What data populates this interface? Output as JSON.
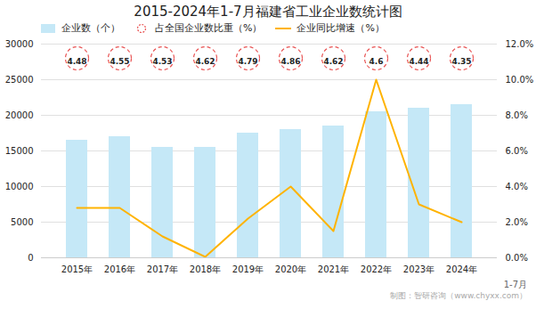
{
  "chart_data": {
    "type": "bar",
    "title": "2015-2024年1-7月福建省工业企业数统计图",
    "categories": [
      "2015年",
      "2016年",
      "2017年",
      "2018年",
      "2019年",
      "2020年",
      "2021年",
      "2022年",
      "2023年",
      "2024年"
    ],
    "series": [
      {
        "name": "企业数（个）",
        "type": "bar",
        "color": "#c5e8f7",
        "values": [
          16500,
          17000,
          15500,
          15500,
          17500,
          18000,
          18500,
          20500,
          21000,
          21500
        ]
      },
      {
        "name": "占全国企业数比重（%）",
        "type": "scatter",
        "marker": "circle",
        "line_style": "dashed",
        "color": "#e85050",
        "data_labels": true,
        "values": [
          4.48,
          4.55,
          4.53,
          4.62,
          4.79,
          4.86,
          4.62,
          4.6,
          4.44,
          4.35
        ]
      },
      {
        "name": "企业同比增速（%）",
        "type": "line",
        "color": "#FFB300",
        "axis": "y2",
        "values": [
          0.028,
          0.028,
          0.012,
          0.0005,
          0.022,
          0.04,
          0.015,
          0.1,
          0.03,
          0.02
        ]
      }
    ],
    "ylim": [
      0,
      30000
    ],
    "yticks": [
      0,
      5000,
      10000,
      15000,
      20000,
      25000,
      30000
    ],
    "y2lim": [
      0,
      0.12
    ],
    "y2ticks": [
      {
        "value": 0,
        "label": "0.0%"
      },
      {
        "value": 0.02,
        "label": "2.0%"
      },
      {
        "value": 0.04,
        "label": "4.0%"
      },
      {
        "value": 0.06,
        "label": "6.0%"
      },
      {
        "value": 0.08,
        "label": "8.0%"
      },
      {
        "value": 0.1,
        "label": "10.0%"
      },
      {
        "value": 0.12,
        "label": "12.0%"
      }
    ],
    "grid": true,
    "legend": "top",
    "annotations": [
      "1-7月",
      "制图：智研咨询（www.chyxx.com）"
    ]
  }
}
